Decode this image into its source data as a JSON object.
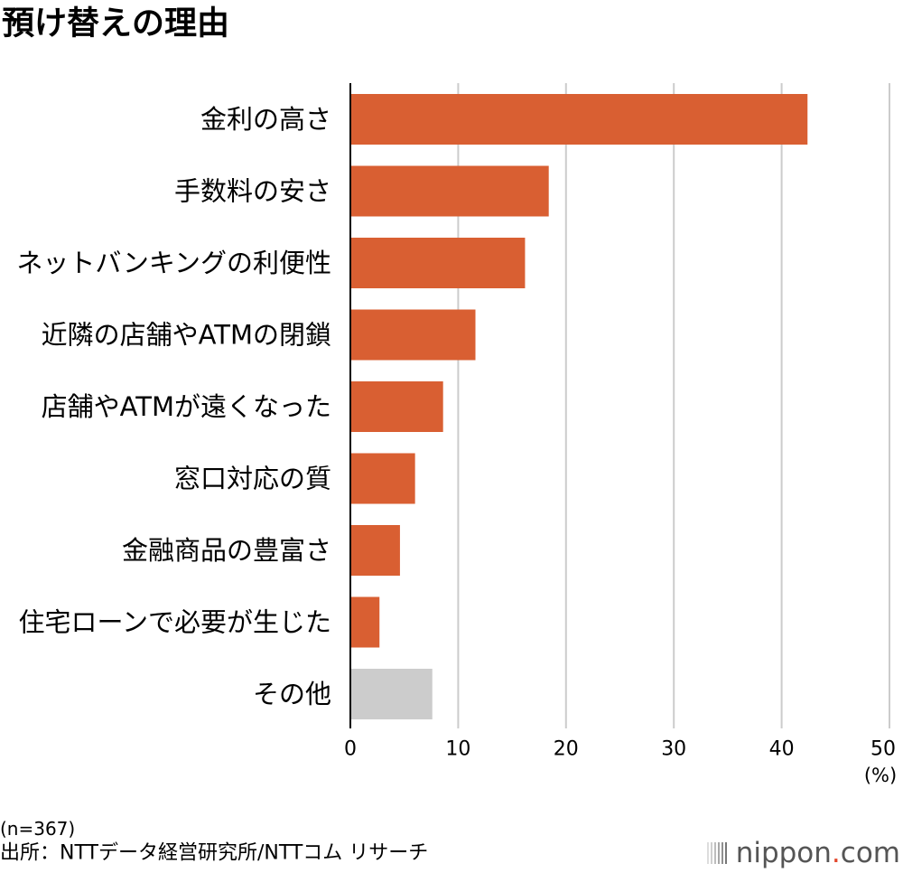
{
  "chart_data": {
    "type": "bar",
    "title": "預け替えの理由",
    "categories": [
      "金利の高さ",
      "手数料の安さ",
      "ネットバンキングの利便性",
      "近隣の店舗やATMの閉鎖",
      "店舗やATMが遠くなった",
      "窓口対応の質",
      "金融商品の豊富さ",
      "住宅ローンで必要が生じた",
      "その他"
    ],
    "values": [
      42.4,
      18.4,
      16.2,
      11.6,
      8.6,
      6.0,
      4.6,
      2.7,
      7.6
    ],
    "bar_colors": [
      "#D95F32",
      "#D95F32",
      "#D95F32",
      "#D95F32",
      "#D95F32",
      "#D95F32",
      "#D95F32",
      "#D95F32",
      "#CCCCCC"
    ],
    "xlabel": "(%)",
    "ylabel": "",
    "xlim": [
      0,
      50
    ],
    "xticks": [
      0,
      10,
      20,
      30,
      40,
      50
    ],
    "grid": true
  },
  "footer": {
    "sample_note": "(n=367)",
    "source": "出所：NTTデータ経営研究所/NTTコム リサーチ"
  },
  "logo": {
    "name": "nippon",
    "dot": ".",
    "tld": "com"
  },
  "colors": {
    "bar": "#D95F32",
    "bar_other": "#CCCCCC",
    "gridline": "#CCCCCC",
    "axis": "#000000",
    "logo_text": "#555555",
    "logo_dot": "#E2472C"
  }
}
